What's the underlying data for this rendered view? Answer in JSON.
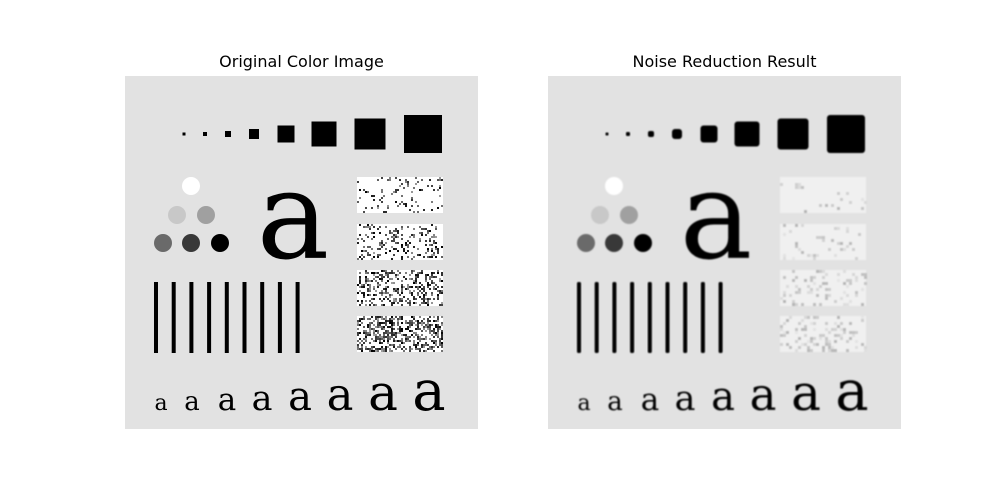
{
  "panels": [
    {
      "title": "Original Color Image",
      "variant": "original"
    },
    {
      "title": "Noise Reduction Result",
      "variant": "denoised"
    }
  ],
  "colors": {
    "page_background": "#ffffff",
    "panel_background": "#e2e2e2",
    "ink": "#000000",
    "gray_light": "#c8c8c8",
    "gray_mid": "#a0a0a0",
    "gray_dark": "#6a6a6a",
    "gray_darker": "#383838",
    "white": "#ffffff"
  },
  "test_pattern": {
    "big_glyph": "a",
    "small_glyph": "a",
    "squares_count": 8,
    "bars_count": 9,
    "noise_patches_count": 4,
    "glyph_row_count": 8
  }
}
